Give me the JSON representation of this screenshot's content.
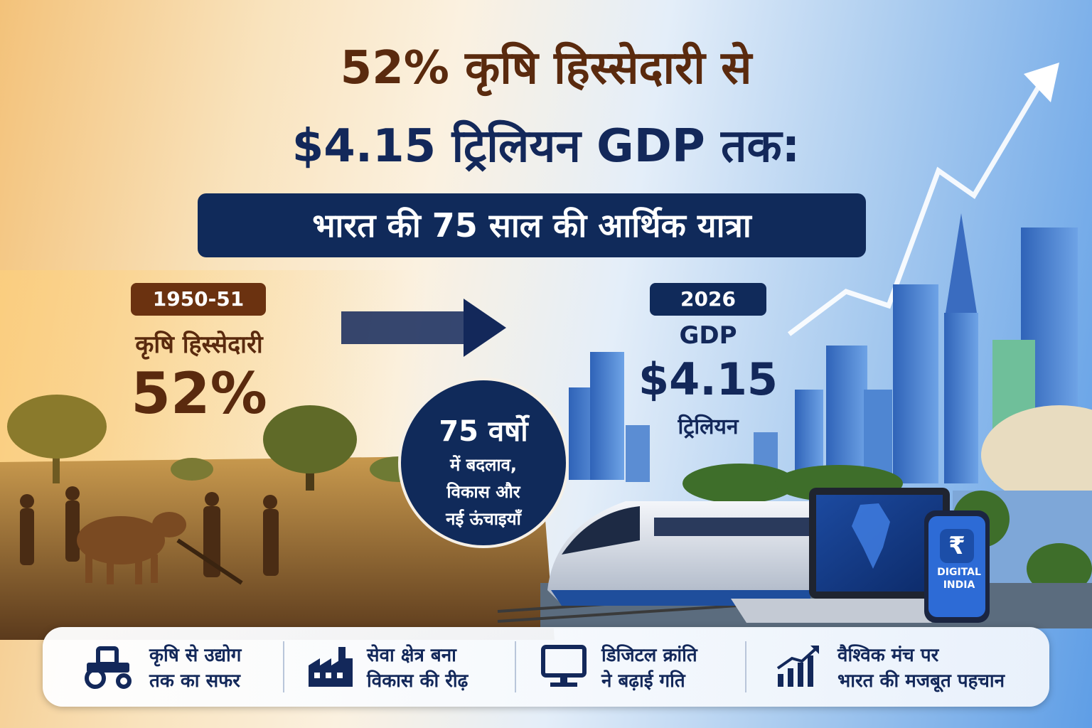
{
  "headline": {
    "line1": "52% कृषि हिस्सेदारी से",
    "line2": "$4.15 ट्रिलियन GDP तक:",
    "subtitle": "भारत की 75 साल की आर्थिक यात्रा"
  },
  "left_stat": {
    "year": "1950-51",
    "label": "कृषि हिस्सेदारी",
    "value": "52%"
  },
  "right_stat": {
    "year": "2026",
    "label": "GDP",
    "value": "$4.15",
    "unit": "ट्रिलियन"
  },
  "circle": {
    "line1": "75 वर्षो",
    "line2": "में बदलाव,",
    "line3": "विकास और",
    "line4": "नई ऊंचाइयाँ"
  },
  "phone": {
    "symbol": "₹",
    "line1": "DIGITAL",
    "line2": "INDIA"
  },
  "features": [
    {
      "icon": "tractor-icon",
      "line1": "कृषि से उद्योग",
      "line2": "तक का सफर"
    },
    {
      "icon": "factory-icon",
      "line1": "सेवा क्षेत्र बना",
      "line2": "विकास की रीढ़"
    },
    {
      "icon": "computer-icon",
      "line1": "डिजिटल क्रांति",
      "line2": "ने बढ़ाई गति"
    },
    {
      "icon": "growth-chart-icon",
      "line1": "वैश्विक मंच पर",
      "line2": "भारत की मजबूत पहचान"
    }
  ],
  "colors": {
    "brown": "#5a2a0e",
    "navy": "#13285a",
    "badge_brown": "#6b3210",
    "badge_navy": "#102a5a"
  }
}
